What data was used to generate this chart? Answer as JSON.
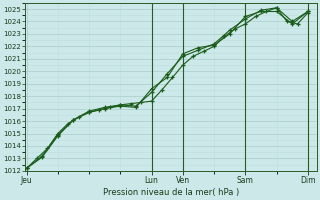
{
  "title": "Pression niveau de la mer( hPa )",
  "bg_color": "#cce8e8",
  "grid_major_color": "#aacccc",
  "grid_minor_color": "#c0dede",
  "line_color": "#1a5c1a",
  "ylim": [
    1012,
    1025.5
  ],
  "yticks": [
    1012,
    1013,
    1014,
    1015,
    1016,
    1017,
    1018,
    1019,
    1020,
    1021,
    1022,
    1023,
    1024,
    1025
  ],
  "x_day_labels": [
    "Jeu",
    "Lun",
    "Ven",
    "Sam",
    "Dim"
  ],
  "x_day_positions": [
    0,
    4.0,
    5.0,
    7.0,
    9.0
  ],
  "series1_x": [
    0,
    0.33,
    0.67,
    1.0,
    1.33,
    1.67,
    2.0,
    2.33,
    2.67,
    3.0,
    3.33,
    3.67,
    4.0,
    4.33,
    4.67,
    5.0,
    5.33,
    5.67,
    6.0,
    6.33,
    6.67,
    7.0,
    7.33,
    7.67,
    8.0,
    8.33,
    8.67,
    9.0
  ],
  "series1_y": [
    1012.2,
    1013.0,
    1013.8,
    1015.0,
    1015.8,
    1016.3,
    1016.7,
    1016.9,
    1017.1,
    1017.3,
    1017.4,
    1017.5,
    1017.6,
    1018.5,
    1019.5,
    1020.5,
    1021.2,
    1021.6,
    1022.0,
    1022.8,
    1023.4,
    1023.8,
    1024.4,
    1024.8,
    1025.1,
    1024.0,
    1023.8,
    1024.7
  ],
  "series2_x": [
    0,
    0.5,
    1.0,
    1.5,
    2.0,
    2.5,
    3.0,
    3.5,
    4.0,
    4.5,
    5.0,
    5.5,
    6.0,
    6.5,
    7.0,
    7.5,
    8.0,
    8.5,
    9.0
  ],
  "series2_y": [
    1012.2,
    1013.2,
    1014.9,
    1016.1,
    1016.8,
    1017.1,
    1017.3,
    1017.2,
    1018.3,
    1019.8,
    1021.2,
    1021.7,
    1022.2,
    1023.3,
    1024.2,
    1024.9,
    1025.1,
    1024.0,
    1024.8
  ],
  "series3_x": [
    0,
    0.5,
    1.0,
    1.5,
    2.0,
    2.5,
    3.0,
    3.5,
    4.0,
    4.5,
    5.0,
    5.5,
    6.0,
    6.5,
    7.0,
    7.5,
    8.0,
    8.5,
    9.0
  ],
  "series3_y": [
    1012.2,
    1013.1,
    1014.8,
    1016.1,
    1016.7,
    1017.0,
    1017.2,
    1017.1,
    1018.6,
    1019.5,
    1021.4,
    1021.9,
    1022.1,
    1023.0,
    1024.4,
    1024.8,
    1024.8,
    1023.8,
    1024.8
  ],
  "vline_positions": [
    4.0,
    5.0,
    7.0,
    9.0
  ],
  "xlim": [
    -0.05,
    9.3
  ]
}
